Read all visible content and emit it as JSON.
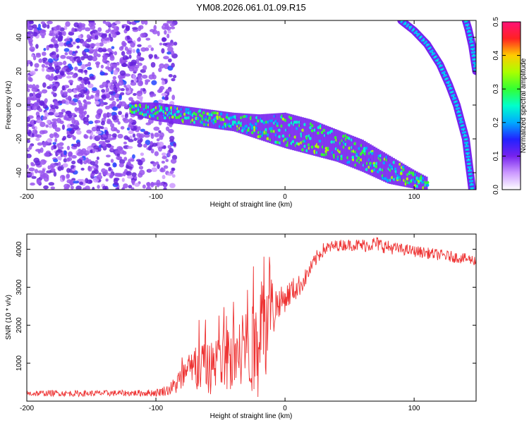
{
  "title": "YM08.2026.061.01.09.R15",
  "chart_data": [
    {
      "type": "heatmap",
      "xlabel": "Height of straight line (km)",
      "ylabel": "Frequency (Hz)",
      "xlim": [
        -200,
        148
      ],
      "ylim": [
        -50,
        50
      ],
      "x_ticks": [
        -200,
        -100,
        0,
        100
      ],
      "x_tick_labels": [
        "-200",
        "-100",
        "0",
        "100"
      ],
      "y_ticks": [
        -40,
        -20,
        0,
        20,
        40
      ],
      "y_tick_labels": [
        "-40",
        "-20",
        "0",
        "20",
        "40"
      ],
      "colorbar": {
        "label": "Normalized spectral amplitude",
        "range": [
          0.0,
          0.5
        ],
        "ticks": [
          0.0,
          0.1,
          0.2,
          0.3,
          0.4,
          0.5
        ],
        "tick_labels": [
          "0.0",
          "0.1",
          "0.2",
          "0.3",
          "0.4",
          "0.5"
        ],
        "colormap": [
          "#ffffff",
          "#cc99ff",
          "#7722ee",
          "#2222ff",
          "#00aaff",
          "#00ffcc",
          "#33ff33",
          "#aaff00",
          "#ffcc00",
          "#ff2222",
          "#ff1177"
        ]
      },
      "features": {
        "noise_region_x": [
          -200,
          -95
        ],
        "main_trace": {
          "x": [
            -120,
            -100,
            -80,
            -60,
            -40,
            -20,
            0,
            20,
            40,
            60,
            80,
            100,
            110
          ],
          "freq_center": [
            -2,
            -4,
            -6,
            -8,
            -10,
            -13,
            -15,
            -19,
            -24,
            -30,
            -38,
            -44,
            -47
          ],
          "half_width_hz": [
            2,
            4,
            4,
            4,
            4,
            6,
            9,
            9,
            8,
            8,
            7,
            4,
            3
          ]
        },
        "curved_traces": [
          {
            "x": [
              90,
              100,
              110,
              120,
              127,
              133,
              140,
              145
            ],
            "freq": [
              50,
              44,
              36,
              24,
              12,
              0,
              -20,
              -50
            ]
          },
          {
            "x": [
              140,
              142,
              145,
              148
            ],
            "freq": [
              50,
              45,
              35,
              20
            ]
          }
        ]
      }
    },
    {
      "type": "line",
      "xlabel": "Height of straight line (km)",
      "ylabel": "SNR (10 * v/v)",
      "xlim": [
        -200,
        148
      ],
      "ylim": [
        0,
        4400
      ],
      "x_ticks": [
        -200,
        -100,
        0,
        100
      ],
      "x_tick_labels": [
        "-200",
        "-100",
        "0",
        "100"
      ],
      "y_ticks": [
        1000,
        2000,
        3000,
        4000
      ],
      "y_tick_labels": [
        "1000",
        "2000",
        "3000",
        "4000"
      ],
      "series": [
        {
          "color": "#ee3333",
          "x": [
            -200,
            -180,
            -160,
            -140,
            -120,
            -100,
            -90,
            -85,
            -80,
            -75,
            -70,
            -65,
            -60,
            -55,
            -50,
            -45,
            -40,
            -35,
            -30,
            -25,
            -20,
            -18,
            -15,
            -12,
            -10,
            -5,
            0,
            5,
            10,
            15,
            20,
            25,
            30,
            40,
            50,
            60,
            70,
            80,
            90,
            100,
            110,
            120,
            130,
            140,
            148
          ],
          "y": [
            200,
            210,
            200,
            210,
            210,
            220,
            300,
            420,
            600,
            750,
            800,
            820,
            850,
            900,
            950,
            1050,
            1150,
            1250,
            1300,
            1350,
            1400,
            2600,
            1900,
            2900,
            2400,
            2600,
            2700,
            2900,
            3000,
            3200,
            3500,
            3800,
            4000,
            4100,
            4120,
            4100,
            4150,
            4050,
            4000,
            3950,
            3900,
            3850,
            3800,
            3750,
            3700
          ],
          "noise_amplitude": [
            80,
            80,
            80,
            80,
            80,
            100,
            150,
            250,
            400,
            500,
            600,
            650,
            700,
            700,
            750,
            800,
            900,
            1000,
            1100,
            1200,
            1300,
            1400,
            1300,
            1200,
            900,
            400,
            350,
            350,
            300,
            250,
            200,
            200,
            180,
            150,
            150,
            180,
            200,
            180,
            150,
            150,
            150,
            150,
            150,
            140,
            140
          ]
        }
      ]
    }
  ]
}
